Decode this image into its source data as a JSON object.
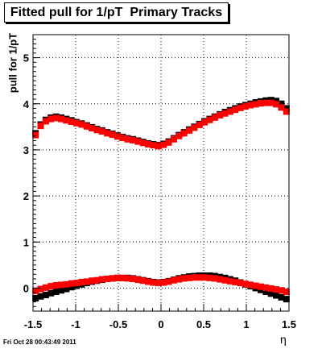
{
  "chart_data": {
    "type": "scatter",
    "title": "Fitted pull for 1/pT  Primary Tracks",
    "xlabel": "η",
    "ylabel": "pull for 1/pT",
    "xlim": [
      -1.5,
      1.5
    ],
    "ylim": [
      -0.5,
      5.5
    ],
    "xticks": [
      -1.5,
      -1,
      -0.5,
      0,
      0.5,
      1,
      1.5
    ],
    "xtick_labels": [
      "-1.5",
      "-1",
      "-0.5",
      "0",
      "0.5",
      "1",
      "1.5"
    ],
    "yticks": [
      0,
      1,
      2,
      3,
      4,
      5
    ],
    "ytick_labels": [
      "0",
      "1",
      "2",
      "3",
      "4",
      "5"
    ],
    "grid": true,
    "series": [
      {
        "color": "#000000",
        "points": [
          [
            -1.47,
            3.36
          ],
          [
            -1.41,
            3.55
          ],
          [
            -1.35,
            3.65
          ],
          [
            -1.29,
            3.7
          ],
          [
            -1.23,
            3.72
          ],
          [
            -1.17,
            3.7
          ],
          [
            -1.11,
            3.67
          ],
          [
            -1.05,
            3.64
          ],
          [
            -0.99,
            3.6
          ],
          [
            -0.93,
            3.57
          ],
          [
            -0.87,
            3.53
          ],
          [
            -0.81,
            3.49
          ],
          [
            -0.75,
            3.45
          ],
          [
            -0.69,
            3.42
          ],
          [
            -0.63,
            3.38
          ],
          [
            -0.57,
            3.35
          ],
          [
            -0.51,
            3.31
          ],
          [
            -0.45,
            3.28
          ],
          [
            -0.39,
            3.25
          ],
          [
            -0.33,
            3.23
          ],
          [
            -0.27,
            3.2
          ],
          [
            -0.21,
            3.17
          ],
          [
            -0.15,
            3.14
          ],
          [
            -0.09,
            3.12
          ],
          [
            -0.03,
            3.1
          ],
          [
            0.03,
            3.13
          ],
          [
            0.09,
            3.18
          ],
          [
            0.15,
            3.25
          ],
          [
            0.21,
            3.32
          ],
          [
            0.27,
            3.38
          ],
          [
            0.33,
            3.44
          ],
          [
            0.39,
            3.5
          ],
          [
            0.45,
            3.56
          ],
          [
            0.51,
            3.62
          ],
          [
            0.57,
            3.67
          ],
          [
            0.63,
            3.72
          ],
          [
            0.69,
            3.77
          ],
          [
            0.75,
            3.82
          ],
          [
            0.81,
            3.86
          ],
          [
            0.87,
            3.9
          ],
          [
            0.93,
            3.94
          ],
          [
            0.99,
            3.97
          ],
          [
            1.05,
            4.0
          ],
          [
            1.11,
            4.03
          ],
          [
            1.17,
            4.05
          ],
          [
            1.23,
            4.07
          ],
          [
            1.29,
            4.08
          ],
          [
            1.35,
            4.06
          ],
          [
            1.41,
            4.0
          ],
          [
            1.47,
            3.9
          ],
          [
            -1.47,
            -0.22
          ],
          [
            -1.41,
            -0.18
          ],
          [
            -1.35,
            -0.15
          ],
          [
            -1.29,
            -0.11
          ],
          [
            -1.23,
            -0.08
          ],
          [
            -1.17,
            -0.05
          ],
          [
            -1.11,
            -0.02
          ],
          [
            -1.05,
            0.02
          ],
          [
            -0.99,
            0.05
          ],
          [
            -0.93,
            0.08
          ],
          [
            -0.87,
            0.11
          ],
          [
            -0.81,
            0.14
          ],
          [
            -0.75,
            0.16
          ],
          [
            -0.69,
            0.18
          ],
          [
            -0.63,
            0.2
          ],
          [
            -0.57,
            0.21
          ],
          [
            -0.51,
            0.22
          ],
          [
            -0.45,
            0.22
          ],
          [
            -0.39,
            0.22
          ],
          [
            -0.33,
            0.21
          ],
          [
            -0.27,
            0.19
          ],
          [
            -0.21,
            0.17
          ],
          [
            -0.15,
            0.15
          ],
          [
            -0.09,
            0.13
          ],
          [
            -0.03,
            0.12
          ],
          [
            0.03,
            0.13
          ],
          [
            0.09,
            0.15
          ],
          [
            0.15,
            0.18
          ],
          [
            0.21,
            0.21
          ],
          [
            0.27,
            0.23
          ],
          [
            0.33,
            0.25
          ],
          [
            0.39,
            0.26
          ],
          [
            0.45,
            0.27
          ],
          [
            0.51,
            0.27
          ],
          [
            0.57,
            0.27
          ],
          [
            0.63,
            0.26
          ],
          [
            0.69,
            0.24
          ],
          [
            0.75,
            0.22
          ],
          [
            0.81,
            0.19
          ],
          [
            0.87,
            0.16
          ],
          [
            0.93,
            0.12
          ],
          [
            0.99,
            0.08
          ],
          [
            1.05,
            0.04
          ],
          [
            1.11,
            0.0
          ],
          [
            1.17,
            -0.04
          ],
          [
            1.23,
            -0.08
          ],
          [
            1.29,
            -0.12
          ],
          [
            1.35,
            -0.16
          ],
          [
            1.41,
            -0.2
          ],
          [
            1.47,
            -0.24
          ]
        ]
      },
      {
        "color": "#ff0000",
        "points": [
          [
            -1.47,
            3.32
          ],
          [
            -1.41,
            3.52
          ],
          [
            -1.35,
            3.62
          ],
          [
            -1.29,
            3.67
          ],
          [
            -1.23,
            3.69
          ],
          [
            -1.17,
            3.67
          ],
          [
            -1.11,
            3.64
          ],
          [
            -1.05,
            3.61
          ],
          [
            -0.99,
            3.58
          ],
          [
            -0.93,
            3.55
          ],
          [
            -0.87,
            3.51
          ],
          [
            -0.81,
            3.47
          ],
          [
            -0.75,
            3.43
          ],
          [
            -0.69,
            3.4
          ],
          [
            -0.63,
            3.36
          ],
          [
            -0.57,
            3.33
          ],
          [
            -0.51,
            3.29
          ],
          [
            -0.45,
            3.26
          ],
          [
            -0.39,
            3.23
          ],
          [
            -0.33,
            3.21
          ],
          [
            -0.27,
            3.18
          ],
          [
            -0.21,
            3.15
          ],
          [
            -0.15,
            3.12
          ],
          [
            -0.09,
            3.1
          ],
          [
            -0.03,
            3.08
          ],
          [
            0.03,
            3.11
          ],
          [
            0.09,
            3.16
          ],
          [
            0.15,
            3.23
          ],
          [
            0.21,
            3.3
          ],
          [
            0.27,
            3.36
          ],
          [
            0.33,
            3.42
          ],
          [
            0.39,
            3.48
          ],
          [
            0.45,
            3.54
          ],
          [
            0.51,
            3.6
          ],
          [
            0.57,
            3.65
          ],
          [
            0.63,
            3.7
          ],
          [
            0.69,
            3.75
          ],
          [
            0.75,
            3.79
          ],
          [
            0.81,
            3.83
          ],
          [
            0.87,
            3.87
          ],
          [
            0.93,
            3.91
          ],
          [
            0.99,
            3.94
          ],
          [
            1.05,
            3.97
          ],
          [
            1.11,
            3.99
          ],
          [
            1.17,
            4.01
          ],
          [
            1.23,
            4.02
          ],
          [
            1.29,
            4.02
          ],
          [
            1.35,
            3.99
          ],
          [
            1.41,
            3.92
          ],
          [
            1.47,
            3.83
          ],
          [
            -1.47,
            -0.06
          ],
          [
            -1.41,
            -0.02
          ],
          [
            -1.35,
            0.01
          ],
          [
            -1.29,
            0.04
          ],
          [
            -1.23,
            0.06
          ],
          [
            -1.17,
            0.07
          ],
          [
            -1.11,
            0.08
          ],
          [
            -1.05,
            0.1
          ],
          [
            -0.99,
            0.11
          ],
          [
            -0.93,
            0.13
          ],
          [
            -0.87,
            0.14
          ],
          [
            -0.81,
            0.16
          ],
          [
            -0.75,
            0.17
          ],
          [
            -0.69,
            0.19
          ],
          [
            -0.63,
            0.2
          ],
          [
            -0.57,
            0.21
          ],
          [
            -0.51,
            0.22
          ],
          [
            -0.45,
            0.22
          ],
          [
            -0.39,
            0.21
          ],
          [
            -0.33,
            0.2
          ],
          [
            -0.27,
            0.18
          ],
          [
            -0.21,
            0.16
          ],
          [
            -0.15,
            0.14
          ],
          [
            -0.09,
            0.12
          ],
          [
            -0.03,
            0.11
          ],
          [
            0.03,
            0.12
          ],
          [
            0.09,
            0.14
          ],
          [
            0.15,
            0.17
          ],
          [
            0.21,
            0.19
          ],
          [
            0.27,
            0.21
          ],
          [
            0.33,
            0.22
          ],
          [
            0.39,
            0.23
          ],
          [
            0.45,
            0.23
          ],
          [
            0.51,
            0.23
          ],
          [
            0.57,
            0.22
          ],
          [
            0.63,
            0.21
          ],
          [
            0.69,
            0.19
          ],
          [
            0.75,
            0.17
          ],
          [
            0.81,
            0.15
          ],
          [
            0.87,
            0.13
          ],
          [
            0.93,
            0.11
          ],
          [
            0.99,
            0.09
          ],
          [
            1.05,
            0.07
          ],
          [
            1.11,
            0.05
          ],
          [
            1.17,
            0.03
          ],
          [
            1.23,
            0.01
          ],
          [
            1.29,
            -0.01
          ],
          [
            1.35,
            -0.03
          ],
          [
            1.41,
            -0.05
          ],
          [
            1.47,
            -0.08
          ]
        ]
      }
    ]
  },
  "footer": {
    "timestamp": "Fri Oct 28 00:43:49 2011"
  }
}
